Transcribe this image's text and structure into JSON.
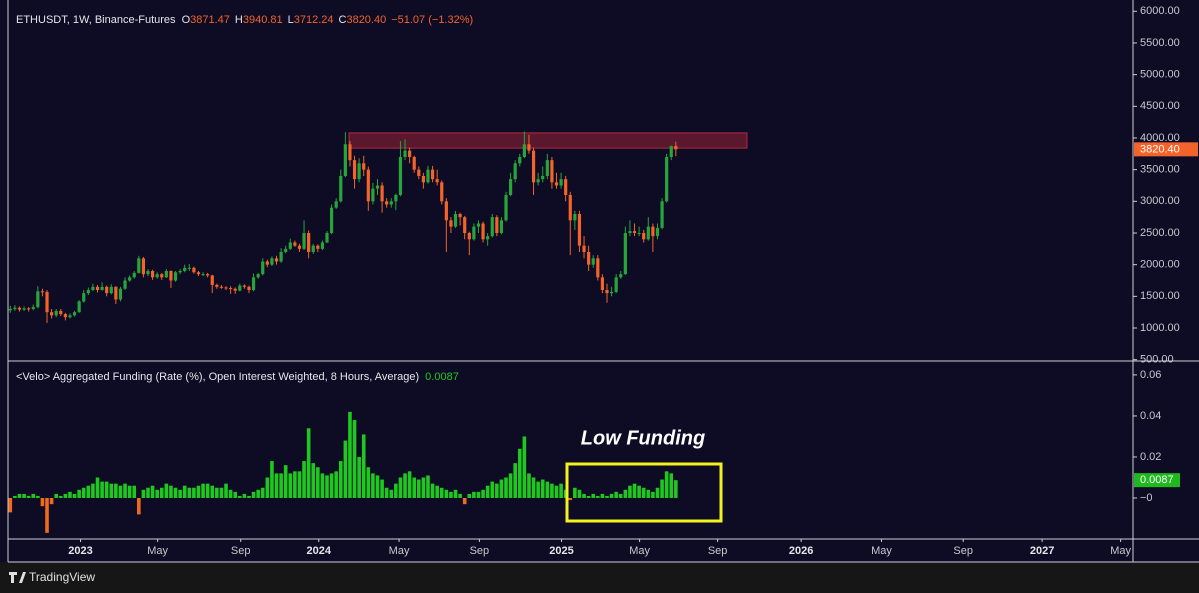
{
  "chart_data": [
    {
      "type": "candlestick",
      "header": {
        "symbol": "ETHUSDT, 1W, Binance-Futures",
        "items": [
          {
            "key": "O",
            "value": "3871.47"
          },
          {
            "key": "H",
            "value": "3940.81"
          },
          {
            "key": "L",
            "value": "3712.24"
          },
          {
            "key": "C",
            "value": "3820.40"
          }
        ],
        "change": "−51.07 (−1.32%)"
      },
      "up_color": "#26a63a",
      "down_color": "#f4632a",
      "ylim": [
        495,
        6178
      ],
      "yticks": [
        {
          "value": 500,
          "label": "500.00"
        },
        {
          "value": 1000,
          "label": "1000.00"
        },
        {
          "value": 1500,
          "label": "1500.00"
        },
        {
          "value": 2000,
          "label": "2000.00"
        },
        {
          "value": 2500,
          "label": "2500.00"
        },
        {
          "value": 3000,
          "label": "3000.00"
        },
        {
          "value": 3500,
          "label": "3500.00"
        },
        {
          "value": 4000,
          "label": "4000.00"
        },
        {
          "value": 4500,
          "label": "4500.00"
        },
        {
          "value": 5000,
          "label": "5000.00"
        },
        {
          "value": 5500,
          "label": "5500.00"
        },
        {
          "value": 6000,
          "label": "6000.00"
        }
      ],
      "zone": {
        "x": [
          73.8,
          160.5
        ],
        "y": [
          3840,
          4080
        ],
        "color": "#b8283f"
      },
      "ohlc": [
        [
          1280,
          1350,
          1240,
          1300
        ],
        [
          1300,
          1360,
          1270,
          1320
        ],
        [
          1320,
          1340,
          1260,
          1290
        ],
        [
          1290,
          1340,
          1270,
          1310
        ],
        [
          1310,
          1330,
          1260,
          1300
        ],
        [
          1300,
          1370,
          1280,
          1330
        ],
        [
          1330,
          1660,
          1310,
          1580
        ],
        [
          1580,
          1620,
          1500,
          1570
        ],
        [
          1570,
          1600,
          1080,
          1250
        ],
        [
          1250,
          1300,
          1150,
          1200
        ],
        [
          1200,
          1300,
          1170,
          1270
        ],
        [
          1270,
          1300,
          1190,
          1220
        ],
        [
          1220,
          1240,
          1120,
          1170
        ],
        [
          1170,
          1230,
          1150,
          1200
        ],
        [
          1200,
          1270,
          1180,
          1250
        ],
        [
          1250,
          1440,
          1240,
          1420
        ],
        [
          1420,
          1600,
          1400,
          1550
        ],
        [
          1550,
          1640,
          1520,
          1600
        ],
        [
          1600,
          1700,
          1580,
          1650
        ],
        [
          1650,
          1680,
          1560,
          1600
        ],
        [
          1600,
          1720,
          1590,
          1650
        ],
        [
          1650,
          1670,
          1500,
          1550
        ],
        [
          1550,
          1690,
          1530,
          1650
        ],
        [
          1650,
          1660,
          1380,
          1450
        ],
        [
          1450,
          1650,
          1420,
          1620
        ],
        [
          1620,
          1800,
          1600,
          1750
        ],
        [
          1750,
          1830,
          1730,
          1800
        ],
        [
          1800,
          1900,
          1780,
          1870
        ],
        [
          1870,
          2140,
          1860,
          2100
        ],
        [
          2100,
          2120,
          1800,
          1850
        ],
        [
          1850,
          1930,
          1820,
          1900
        ],
        [
          1900,
          1920,
          1760,
          1800
        ],
        [
          1800,
          1880,
          1780,
          1850
        ],
        [
          1850,
          1870,
          1760,
          1800
        ],
        [
          1800,
          1930,
          1790,
          1900
        ],
        [
          1900,
          1910,
          1630,
          1750
        ],
        [
          1750,
          1900,
          1730,
          1880
        ],
        [
          1880,
          1930,
          1850,
          1900
        ],
        [
          1900,
          2000,
          1880,
          1950
        ],
        [
          1950,
          2010,
          1900,
          1950
        ],
        [
          1950,
          1970,
          1860,
          1880
        ],
        [
          1880,
          1900,
          1820,
          1850
        ],
        [
          1850,
          1880,
          1820,
          1850
        ],
        [
          1850,
          1870,
          1800,
          1830
        ],
        [
          1830,
          1840,
          1550,
          1680
        ],
        [
          1680,
          1700,
          1620,
          1650
        ],
        [
          1650,
          1680,
          1620,
          1640
        ],
        [
          1640,
          1660,
          1600,
          1630
        ],
        [
          1630,
          1660,
          1540,
          1620
        ],
        [
          1620,
          1640,
          1540,
          1590
        ],
        [
          1590,
          1700,
          1580,
          1670
        ],
        [
          1670,
          1690,
          1620,
          1650
        ],
        [
          1650,
          1670,
          1550,
          1600
        ],
        [
          1600,
          1860,
          1580,
          1800
        ],
        [
          1800,
          1870,
          1780,
          1850
        ],
        [
          1850,
          2100,
          1830,
          2050
        ],
        [
          2050,
          2080,
          1960,
          2000
        ],
        [
          2000,
          2130,
          1980,
          2100
        ],
        [
          2100,
          2140,
          2000,
          2050
        ],
        [
          2050,
          2260,
          2030,
          2200
        ],
        [
          2200,
          2300,
          2180,
          2250
        ],
        [
          2250,
          2410,
          2230,
          2350
        ],
        [
          2350,
          2380,
          2280,
          2300
        ],
        [
          2300,
          2330,
          2200,
          2250
        ],
        [
          2250,
          2700,
          2230,
          2500
        ],
        [
          2500,
          2540,
          2100,
          2200
        ],
        [
          2200,
          2330,
          2170,
          2300
        ],
        [
          2300,
          2320,
          2200,
          2250
        ],
        [
          2250,
          2380,
          2230,
          2350
        ],
        [
          2350,
          2530,
          2340,
          2500
        ],
        [
          2500,
          2950,
          2480,
          2900
        ],
        [
          2900,
          3050,
          2880,
          3000
        ],
        [
          3000,
          3500,
          2980,
          3400
        ],
        [
          3400,
          4090,
          3380,
          3900
        ],
        [
          3900,
          3950,
          3550,
          3650
        ],
        [
          3650,
          3720,
          3200,
          3350
        ],
        [
          3350,
          3680,
          3300,
          3600
        ],
        [
          3600,
          3720,
          3400,
          3500
        ],
        [
          3500,
          3550,
          2850,
          3000
        ],
        [
          3000,
          3290,
          2950,
          3200
        ],
        [
          3200,
          3350,
          3100,
          3250
        ],
        [
          3250,
          3300,
          2820,
          3000
        ],
        [
          3000,
          3050,
          2900,
          2950
        ],
        [
          2950,
          3050,
          2900,
          3000
        ],
        [
          3000,
          3120,
          2860,
          3100
        ],
        [
          3100,
          3950,
          3080,
          3700
        ],
        [
          3700,
          3980,
          3650,
          3800
        ],
        [
          3800,
          3850,
          3600,
          3700
        ],
        [
          3700,
          3720,
          3450,
          3500
        ],
        [
          3500,
          3550,
          3350,
          3400
        ],
        [
          3400,
          3450,
          3200,
          3300
        ],
        [
          3300,
          3560,
          3280,
          3500
        ],
        [
          3500,
          3560,
          3300,
          3350
        ],
        [
          3350,
          3500,
          3250,
          3300
        ],
        [
          3300,
          3330,
          2950,
          3000
        ],
        [
          3000,
          3050,
          2200,
          2700
        ],
        [
          2700,
          2750,
          2500,
          2600
        ],
        [
          2600,
          2850,
          2580,
          2800
        ],
        [
          2800,
          2820,
          2620,
          2750
        ],
        [
          2750,
          2770,
          2400,
          2500
        ],
        [
          2500,
          2520,
          2150,
          2400
        ],
        [
          2400,
          2650,
          2380,
          2600
        ],
        [
          2600,
          2700,
          2500,
          2650
        ],
        [
          2650,
          2680,
          2350,
          2400
        ],
        [
          2400,
          2500,
          2300,
          2450
        ],
        [
          2450,
          2800,
          2430,
          2750
        ],
        [
          2750,
          2780,
          2450,
          2500
        ],
        [
          2500,
          2750,
          2480,
          2700
        ],
        [
          2700,
          3150,
          2680,
          3100
        ],
        [
          3100,
          3450,
          3080,
          3350
        ],
        [
          3350,
          3650,
          3300,
          3600
        ],
        [
          3600,
          3750,
          3550,
          3700
        ],
        [
          3700,
          4100,
          3680,
          3900
        ],
        [
          3900,
          4050,
          3750,
          3800
        ],
        [
          3800,
          3850,
          3100,
          3300
        ],
        [
          3300,
          3450,
          3250,
          3350
        ],
        [
          3350,
          3550,
          3300,
          3400
        ],
        [
          3400,
          3750,
          3350,
          3650
        ],
        [
          3650,
          3700,
          3200,
          3300
        ],
        [
          3300,
          3450,
          3200,
          3250
        ],
        [
          3250,
          3450,
          3200,
          3350
        ],
        [
          3350,
          3400,
          3000,
          3100
        ],
        [
          3100,
          3150,
          2150,
          2700
        ],
        [
          2700,
          2850,
          2550,
          2800
        ],
        [
          2800,
          2850,
          2200,
          2300
        ],
        [
          2300,
          2450,
          2100,
          2200
        ],
        [
          2200,
          2300,
          1900,
          2000
        ],
        [
          2000,
          2150,
          1950,
          2100
        ],
        [
          2100,
          2150,
          1750,
          1800
        ],
        [
          1800,
          1850,
          1550,
          1600
        ],
        [
          1600,
          1700,
          1400,
          1550
        ],
        [
          1550,
          1650,
          1500,
          1570
        ],
        [
          1570,
          1850,
          1550,
          1800
        ],
        [
          1800,
          1900,
          1780,
          1850
        ],
        [
          1850,
          2600,
          1840,
          2500
        ],
        [
          2500,
          2700,
          2450,
          2530
        ],
        [
          2530,
          2650,
          2450,
          2500
        ],
        [
          2500,
          2600,
          2450,
          2500
        ],
        [
          2500,
          2550,
          2350,
          2400
        ],
        [
          2400,
          2750,
          2380,
          2600
        ],
        [
          2600,
          2650,
          2200,
          2450
        ],
        [
          2450,
          2650,
          2400,
          2580
        ],
        [
          2580,
          3050,
          2560,
          3000
        ],
        [
          3000,
          3750,
          2980,
          3700
        ],
        [
          3700,
          3880,
          3650,
          3871.47
        ],
        [
          3871.47,
          3940.81,
          3712.24,
          3820.4
        ]
      ]
    },
    {
      "type": "bar",
      "title": "<Velo> Aggregated Funding (Rate (%), Open Interest Weighted, 8 Hours, Average)",
      "positive_color": "#1ec81e",
      "negative_color": "#f06a1e",
      "ylim": [
        -0.0195,
        0.0663
      ],
      "yticks": [
        {
          "value": 0,
          "label": "−0"
        },
        0.02,
        0.04,
        0.06
      ],
      "annotation": "Low Funding",
      "values": [
        -0.007,
        0.001,
        0.002,
        0.002,
        0.001,
        0.002,
        0.001,
        -0.004,
        -0.017,
        -0.003,
        0.002,
        0.001,
        0.002,
        0.003,
        0.002,
        0.004,
        0.005,
        0.006,
        0.007,
        0.01,
        0.008,
        0.008,
        0.007,
        0.007,
        0.006,
        0.007,
        0.006,
        0.006,
        -0.008,
        0.004,
        0.005,
        0.006,
        0.004,
        0.005,
        0.007,
        0.006,
        0.005,
        0.004,
        0.006,
        0.005,
        0.005,
        0.006,
        0.007,
        0.007,
        0.006,
        0.005,
        0.005,
        0.007,
        0.004,
        0.003,
        0.001,
        0.002,
        0.001,
        0.003,
        0.004,
        0.005,
        0.01,
        0.018,
        0.012,
        0.012,
        0.016,
        0.012,
        0.013,
        0.013,
        0.018,
        0.034,
        0.017,
        0.015,
        0.012,
        0.011,
        0.012,
        0.013,
        0.018,
        0.028,
        0.042,
        0.038,
        0.02,
        0.031,
        0.015,
        0.012,
        0.011,
        0.009,
        0.005,
        0.004,
        0.007,
        0.01,
        0.012,
        0.013,
        0.01,
        0.009,
        0.01,
        0.011,
        0.007,
        0.006,
        0.005,
        0.004,
        0.003,
        0.004,
        0.002,
        -0.003,
        0.002,
        0.003,
        0.003,
        0.004,
        0.006,
        0.008,
        0.007,
        0.009,
        0.01,
        0.012,
        0.017,
        0.024,
        0.03,
        0.012,
        0.01,
        0.008,
        0.009,
        0.008,
        0.007,
        0.006,
        0.007,
        0.004,
        -0.001,
        0.005,
        0.004,
        0.002,
        0.001,
        0.002,
        0.001,
        0.002,
        0.001,
        0.002,
        0.003,
        0.002,
        0.004,
        0.006,
        0.007,
        0.006,
        0.005,
        0.004,
        0.003,
        0.005,
        0.009,
        0.013,
        0.012,
        0.0087
      ]
    }
  ],
  "x_axis": {
    "xlim": [
      -0.5,
      244.6
    ],
    "xticks": [
      {
        "value": 15.3,
        "label": "2023"
      },
      {
        "value": 32.1,
        "label": "May"
      },
      {
        "value": 50.2,
        "label": "Sep"
      },
      {
        "value": 67.2,
        "label": "2024"
      },
      {
        "value": 84.7,
        "label": "May"
      },
      {
        "value": 102.2,
        "label": "Sep"
      },
      {
        "value": 120.1,
        "label": "2025"
      },
      {
        "value": 137.1,
        "label": "May"
      },
      {
        "value": 154.1,
        "label": "Sep"
      },
      {
        "value": 172.3,
        "label": "2026"
      },
      {
        "value": 189.8,
        "label": "May"
      },
      {
        "value": 207.6,
        "label": "Sep"
      },
      {
        "value": 224.8,
        "label": "2027"
      },
      {
        "value": 241.9,
        "label": "May"
      }
    ]
  },
  "footer": {
    "brand": "TradingView"
  }
}
